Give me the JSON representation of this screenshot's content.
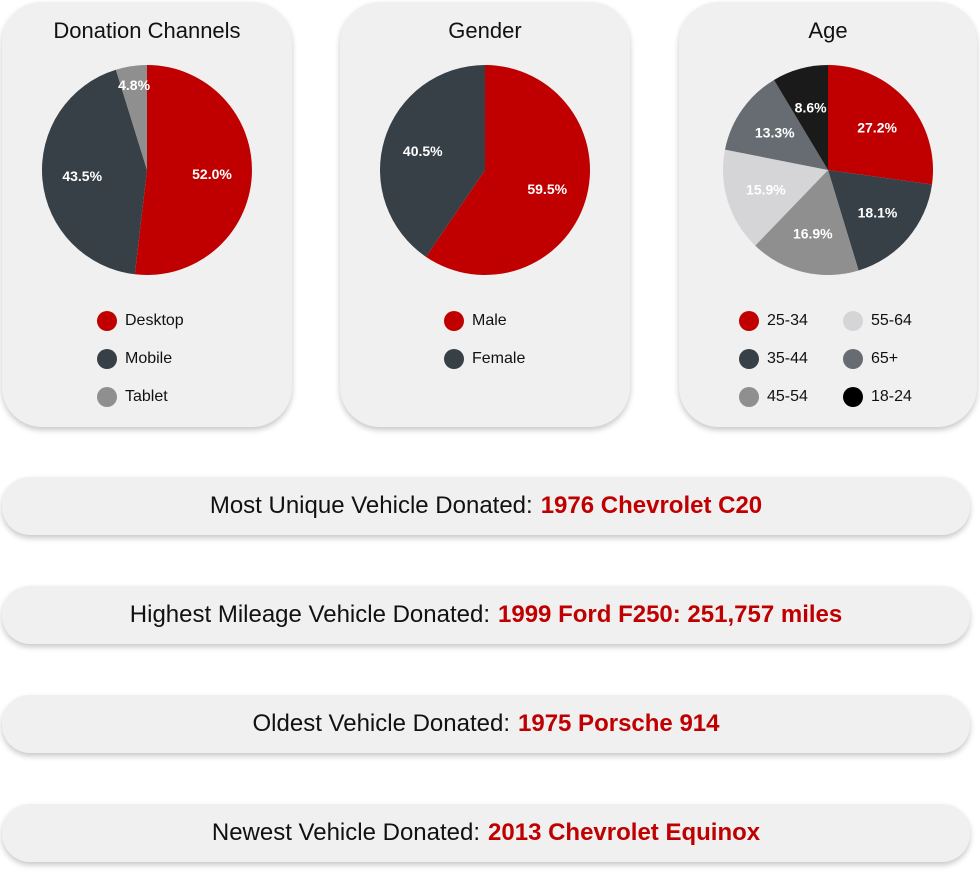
{
  "colors": {
    "red": "#c00000",
    "charcoal": "#373f47",
    "gray": "#8f8f8f",
    "light_gray": "#d5d5d7",
    "slate": "#676c72",
    "black": "#1a1a1a",
    "card_bg": "#f0f0f0"
  },
  "chart_data": [
    {
      "type": "pie",
      "title": "Donation Channels",
      "categories": [
        "Desktop",
        "Mobile",
        "Tablet"
      ],
      "values": [
        52.0,
        43.5,
        4.8
      ],
      "labels": [
        "52.0%",
        "43.5%",
        "4.8%"
      ],
      "colors": [
        "#c00000",
        "#373f47",
        "#8f8f8f"
      ],
      "legend": "bottom"
    },
    {
      "type": "pie",
      "title": "Gender",
      "categories": [
        "Male",
        "Female"
      ],
      "values": [
        59.5,
        40.5
      ],
      "labels": [
        "59.5%",
        "40.5%"
      ],
      "colors": [
        "#c00000",
        "#373f47"
      ],
      "legend": "bottom"
    },
    {
      "type": "pie",
      "title": "Age",
      "categories": [
        "25-34",
        "35-44",
        "45-54",
        "55-64",
        "65+",
        "18-24"
      ],
      "values": [
        27.2,
        18.1,
        16.9,
        15.9,
        13.3,
        8.6
      ],
      "labels": [
        "27.2%",
        "18.1%",
        "16.9%",
        "15.9%",
        "13.3%",
        "8.6%"
      ],
      "colors": [
        "#c00000",
        "#373f47",
        "#8f8f8f",
        "#d5d5d7",
        "#676c72",
        "#1a1a1a"
      ],
      "legend": "bottom"
    }
  ],
  "highlights": [
    {
      "label": "Most Unique Vehicle Donated:",
      "value": "1976 Chevrolet C20"
    },
    {
      "label": "Highest Mileage Vehicle Donated:",
      "value": "1999 Ford F250: 251,757 miles"
    },
    {
      "label": "Oldest Vehicle Donated:",
      "value": "1975 Porsche 914"
    },
    {
      "label": "Newest Vehicle Donated:",
      "value": "2013 Chevrolet Equinox"
    }
  ]
}
